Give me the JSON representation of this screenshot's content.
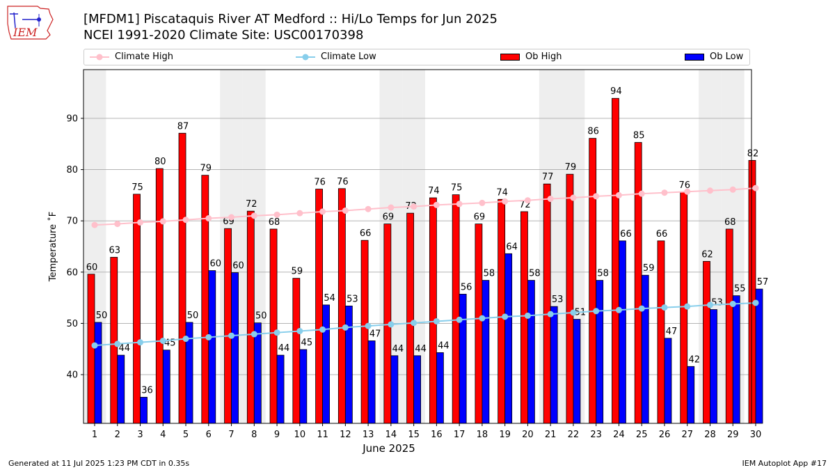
{
  "header": {
    "logo_text": "IEM",
    "title_line1": "[MFDM1] Piscataquis River  AT Medford :: Hi/Lo Temps for Jun 2025",
    "title_line2": "NCEI 1991-2020 Climate Site: USC00170398"
  },
  "legend": {
    "climate_high": "Climate High",
    "climate_low": "Climate Low",
    "ob_high": "Ob High",
    "ob_low": "Ob Low"
  },
  "colors": {
    "ob_high": "#ff0000",
    "ob_low": "#0000ff",
    "climate_high": "#ffc0cb",
    "climate_low": "#87ceeb",
    "weekend_band": "#eeeeee",
    "grid": "#aaaaaa"
  },
  "chart_data": {
    "type": "bar",
    "xlabel": "June 2025",
    "ylabel": "Temperature ˚F",
    "ylim": [
      30.5,
      99.5
    ],
    "yticks": [
      40,
      50,
      60,
      70,
      80,
      90
    ],
    "grid": "horizontal",
    "legend_position": "top",
    "categories": [
      "1",
      "2",
      "3",
      "4",
      "5",
      "6",
      "7",
      "8",
      "9",
      "10",
      "11",
      "12",
      "13",
      "14",
      "15",
      "16",
      "17",
      "18",
      "19",
      "20",
      "21",
      "22",
      "23",
      "24",
      "25",
      "26",
      "27",
      "28",
      "29",
      "30"
    ],
    "weekend_days": [
      1,
      7,
      8,
      14,
      15,
      21,
      22,
      28,
      29
    ],
    "series": [
      {
        "name": "Ob High",
        "kind": "bar",
        "values": [
          59.6,
          62.9,
          75.2,
          80.2,
          87.1,
          78.9,
          68.5,
          71.9,
          68.4,
          58.8,
          76.2,
          76.3,
          66.2,
          69.4,
          71.5,
          74.5,
          75.1,
          69.4,
          74.2,
          71.8,
          77.2,
          79.1,
          86.1,
          93.9,
          85.3,
          66.1,
          75.6,
          62.1,
          68.4,
          81.8
        ],
        "labels": [
          "60",
          "63",
          "75",
          "80",
          "87",
          "79",
          "69",
          "72",
          "68",
          "59",
          "76",
          "76",
          "66",
          "69",
          "72",
          "74",
          "75",
          "69",
          "74",
          "72",
          "77",
          "79",
          "86",
          "94",
          "85",
          "66",
          "76",
          "62",
          "68",
          "82"
        ]
      },
      {
        "name": "Ob Low",
        "kind": "bar",
        "values": [
          50.2,
          43.8,
          35.6,
          44.8,
          50.2,
          60.3,
          59.9,
          50.1,
          43.8,
          44.9,
          53.6,
          53.4,
          46.6,
          43.7,
          43.7,
          44.3,
          55.7,
          58.4,
          63.6,
          58.4,
          53.3,
          50.8,
          58.4,
          66.1,
          59.4,
          47.1,
          41.6,
          52.7,
          55.4,
          56.7
        ],
        "labels": [
          "50",
          "44",
          "36",
          "45",
          "50",
          "60",
          "60",
          "50",
          "44",
          "45",
          "54",
          "53",
          "47",
          "44",
          "44",
          "44",
          "56",
          "58",
          "64",
          "58",
          "53",
          "51",
          "58",
          "66",
          "59",
          "47",
          "42",
          "53",
          "55",
          "57"
        ]
      },
      {
        "name": "Climate High",
        "kind": "line",
        "values": [
          69.2,
          69.4,
          69.7,
          69.9,
          70.2,
          70.5,
          70.7,
          71.0,
          71.2,
          71.5,
          71.8,
          72.0,
          72.3,
          72.6,
          72.8,
          73.1,
          73.3,
          73.5,
          73.8,
          74.0,
          74.3,
          74.5,
          74.8,
          75.0,
          75.3,
          75.5,
          75.7,
          75.9,
          76.1,
          76.4
        ]
      },
      {
        "name": "Climate Low",
        "kind": "line",
        "values": [
          45.7,
          46.0,
          46.3,
          46.6,
          47.0,
          47.3,
          47.6,
          47.9,
          48.2,
          48.5,
          48.8,
          49.2,
          49.5,
          49.8,
          50.1,
          50.4,
          50.7,
          51.0,
          51.3,
          51.5,
          51.8,
          52.1,
          52.4,
          52.6,
          52.9,
          53.1,
          53.3,
          53.6,
          53.8,
          54.0
        ]
      }
    ]
  },
  "footer": {
    "generated": "Generated at 11 Jul 2025 1:23 PM CDT in 0.35s",
    "app": "IEM Autoplot App #17"
  }
}
